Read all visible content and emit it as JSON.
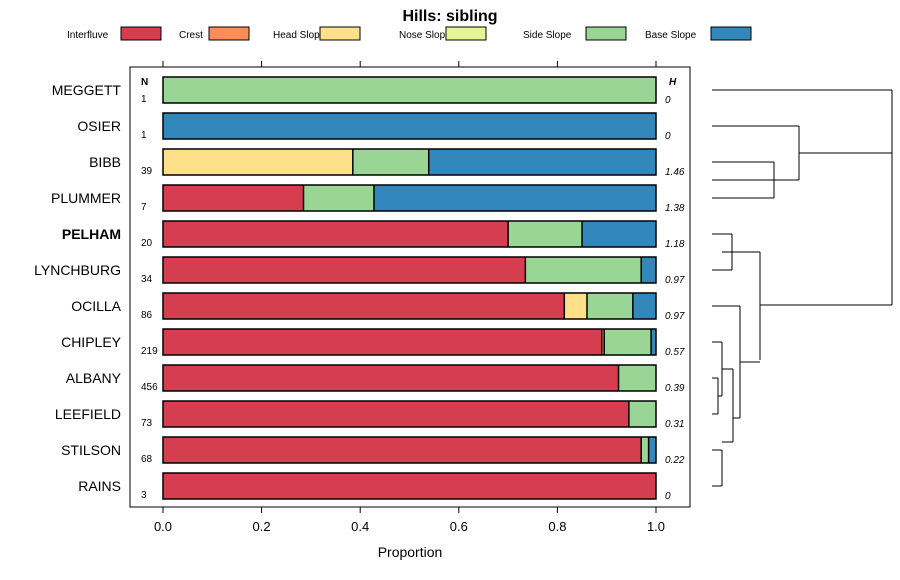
{
  "chart_data": {
    "type": "bar",
    "orientation": "horizontal",
    "stacked": true,
    "title": "Hills: sibling",
    "xlabel": "Proportion",
    "ylabel": "",
    "xlim": [
      0,
      1
    ],
    "x_ticks": [
      "0.0",
      "0.2",
      "0.4",
      "0.6",
      "0.8",
      "1.0"
    ],
    "tick_values": [
      0,
      0.2,
      0.4,
      0.6,
      0.8,
      1.0
    ],
    "col_header_n": "N",
    "col_header_h": "H",
    "legend": [
      {
        "name": "Interfluve",
        "color": "#d53e4f"
      },
      {
        "name": "Crest",
        "color": "#fc8d59"
      },
      {
        "name": "Head Slope",
        "color": "#fee08b"
      },
      {
        "name": "Nose Slope",
        "color": "#e6f598"
      },
      {
        "name": "Side Slope",
        "color": "#99d594"
      },
      {
        "name": "Base Slope",
        "color": "#3288bd"
      }
    ],
    "categories": [
      "MEGGETT",
      "OSIER",
      "BIBB",
      "PLUMMER",
      "PELHAM",
      "LYNCHBURG",
      "OCILLA",
      "CHIPLEY",
      "ALBANY",
      "LEEFIELD",
      "STILSON",
      "RAINS"
    ],
    "bold_category": "PELHAM",
    "n": [
      "1",
      "1",
      "39",
      "7",
      "20",
      "34",
      "86",
      "219",
      "456",
      "73",
      "68",
      "3"
    ],
    "h": [
      "0",
      "0",
      "1.46",
      "1.38",
      "1.18",
      "0.97",
      "0.97",
      "0.57",
      "0.39",
      "0.31",
      "0.22",
      "0"
    ],
    "series": [
      {
        "name": "Interfluve",
        "values": [
          0,
          0,
          0,
          0.285,
          0.7,
          0.735,
          0.814,
          0.89,
          0.924,
          0.945,
          0.97,
          1.0
        ]
      },
      {
        "name": "Crest",
        "values": [
          0,
          0,
          0,
          0,
          0,
          0,
          0,
          0.005,
          0,
          0,
          0,
          0
        ]
      },
      {
        "name": "Head Slope",
        "values": [
          0,
          0,
          0.385,
          0,
          0,
          0,
          0.046,
          0,
          0,
          0,
          0,
          0
        ]
      },
      {
        "name": "Nose Slope",
        "values": [
          0,
          0,
          0,
          0,
          0,
          0,
          0,
          0,
          0,
          0,
          0,
          0
        ]
      },
      {
        "name": "Side Slope",
        "values": [
          1.0,
          0,
          0.154,
          0.143,
          0.15,
          0.235,
          0.093,
          0.095,
          0.076,
          0.055,
          0.015,
          0
        ]
      },
      {
        "name": "Base Slope",
        "values": [
          0,
          1.0,
          0.461,
          0.572,
          0.15,
          0.03,
          0.047,
          0.01,
          0,
          0,
          0.015,
          0
        ]
      }
    ],
    "dendrogram": {
      "type": "hierarchical-clustering",
      "placement": "right",
      "groups": [
        [
          "MEGGETT",
          [
            "OSIER",
            [
              "BIBB",
              "PLUMMER"
            ]
          ]
        ],
        [
          [
            "PELHAM",
            "LYNCHBURG"
          ],
          [
            "OCILLA",
            [
              [
                [
                  "CHIPLEY",
                  "ALBANY"
                ],
                "LEEFIELD"
              ],
              [
                "STILSON",
                "RAINS"
              ]
            ]
          ]
        ]
      ]
    },
    "grid": false,
    "legend_position": "top"
  }
}
